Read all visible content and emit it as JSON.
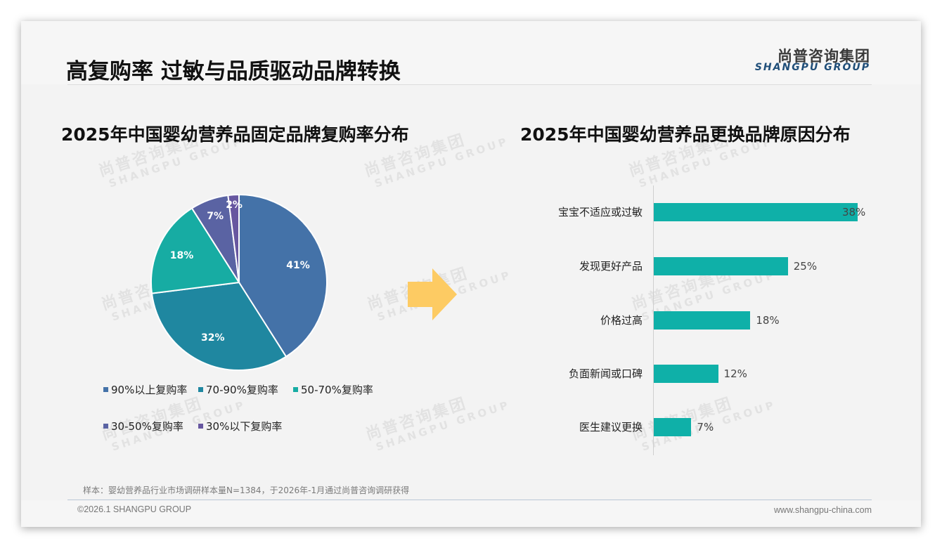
{
  "header": {
    "title": "高复购率 过敏与品质驱动品牌转换",
    "logo_cn": "尚普咨询集团",
    "logo_en": "SHANGPU GROUP"
  },
  "watermark": {
    "cn": "尚普咨询集团",
    "en": "SHANGPU GROUP"
  },
  "left_chart": {
    "title": "2025年中国婴幼营养品固定品牌复购率分布"
  },
  "right_chart": {
    "title": "2025年中国婴幼营养品更换品牌原因分布"
  },
  "arrow_icon": "right-arrow-icon",
  "colors": {
    "pie": [
      "#4472a8",
      "#1f87a0",
      "#17aca3",
      "#5a63a3",
      "#6757a0"
    ],
    "bar": "#0fb0a8",
    "arrow": "#fdcb63"
  },
  "chart_data": [
    {
      "type": "pie",
      "title": "2025年中国婴幼营养品固定品牌复购率分布",
      "categories": [
        "90%以上复购率",
        "70-90%复购率",
        "50-70%复购率",
        "30-50%复购率",
        "30%以下复购率"
      ],
      "values": [
        41,
        32,
        18,
        7,
        2
      ],
      "labels": [
        "41%",
        "32%",
        "18%",
        "7%",
        "2%"
      ],
      "legend_position": "bottom"
    },
    {
      "type": "bar",
      "orientation": "horizontal",
      "title": "2025年中国婴幼营养品更换品牌原因分布",
      "categories": [
        "宝宝不适应或过敏",
        "发现更好产品",
        "价格过高",
        "负面新闻或口碑",
        "医生建议更换"
      ],
      "values": [
        38,
        25,
        18,
        12,
        7
      ],
      "labels": [
        "38%",
        "25%",
        "18%",
        "12%",
        "7%"
      ],
      "xlabel": "",
      "ylabel": "",
      "grid": false
    }
  ],
  "footer": {
    "note": "样本：婴幼营养品行业市场调研样本量N=1384，于2026年-1月通过尚普咨询调研获得",
    "copyright": "©2026.1 SHANGPU GROUP",
    "website": "www.shangpu-china.com"
  }
}
